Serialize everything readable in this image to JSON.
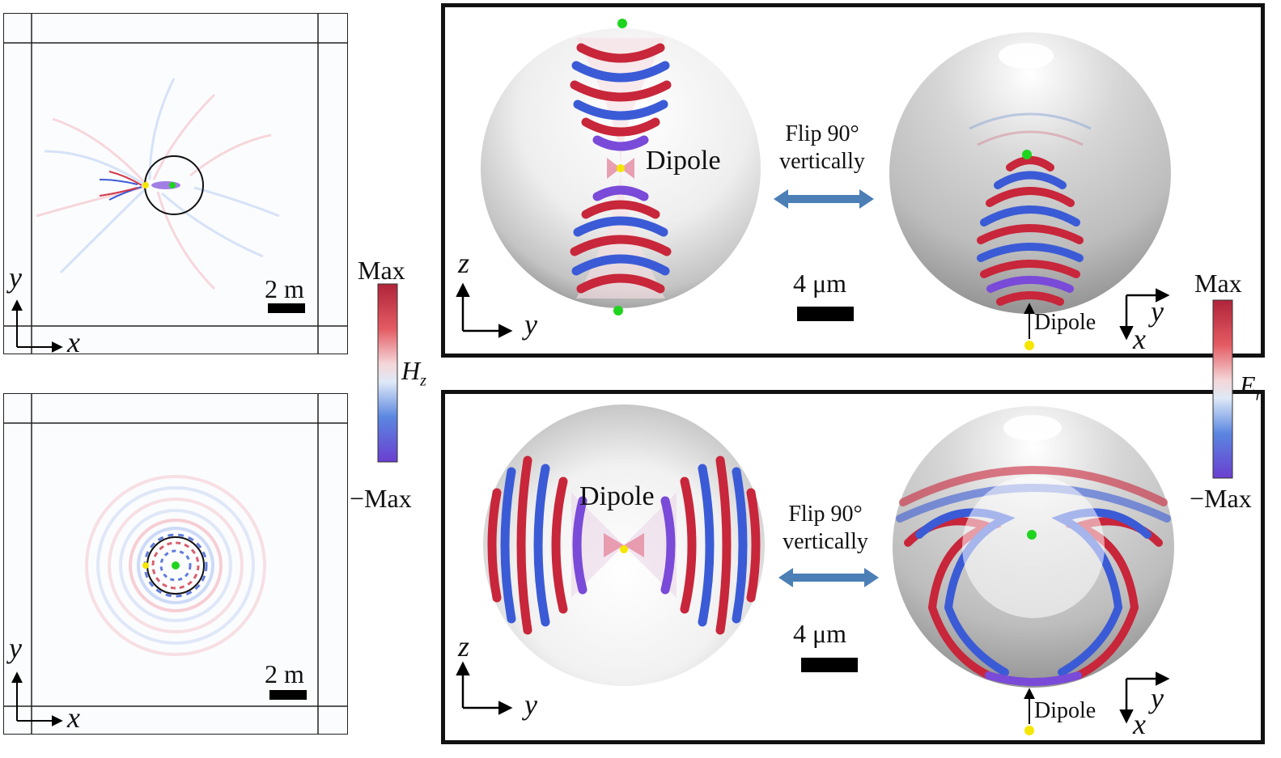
{
  "left_panels": {
    "top": {
      "axis_y": "y",
      "axis_x": "x",
      "scale_label": "2 m"
    },
    "bottom": {
      "axis_y": "y",
      "axis_x": "x",
      "scale_label": "2 m"
    }
  },
  "colorbar_left": {
    "max_label": "Max",
    "min_label": "−Max",
    "field_label": "H",
    "field_sub": "z"
  },
  "colorbar_right": {
    "max_label": "Max",
    "min_label": "−Max",
    "field_label": "E",
    "field_sub": "r"
  },
  "panel_top": {
    "dipole_label": "Dipole",
    "flip_line1": "Flip 90°",
    "flip_line2": "vertically",
    "scale_label": "4 μm",
    "axis_left_up": "z",
    "axis_left_right": "y",
    "axis_right_right": "y",
    "axis_right_down": "x",
    "dipole_small": "Dipole"
  },
  "panel_bottom": {
    "dipole_label": "Dipole",
    "flip_line1": "Flip 90°",
    "flip_line2": "vertically",
    "scale_label": "4 μm",
    "axis_left_up": "z",
    "axis_left_right": "y",
    "axis_right_right": "y",
    "axis_right_down": "x",
    "dipole_small": "Dipole"
  },
  "colors": {
    "dipole_marker": "#f5e600",
    "detector_marker": "#1fd41f",
    "arrow_blue": "#4b7fb5",
    "wave_red": "#c8263a",
    "wave_blue": "#3b5bd6",
    "wave_purple": "#7a4ad8"
  }
}
